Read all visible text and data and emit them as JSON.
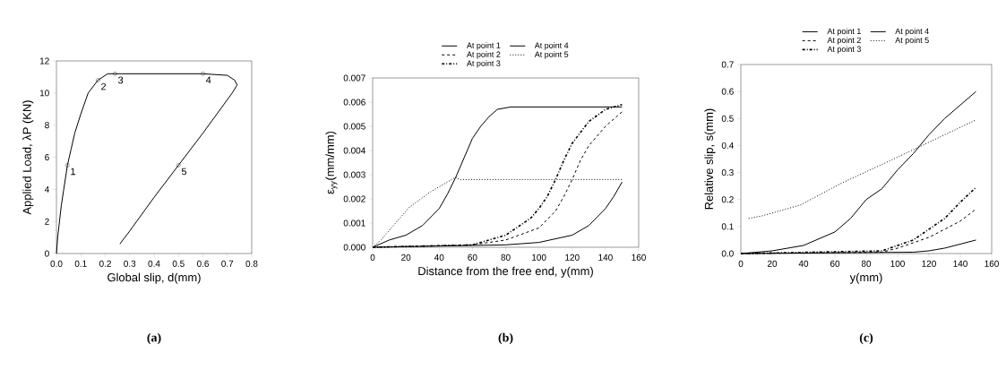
{
  "chart_data": [
    {
      "type": "line",
      "xlabel": "Global slip, d(mm)",
      "ylabel": "Applied Load, λP (KN)",
      "xlim": [
        0,
        0.8
      ],
      "ylim": [
        0,
        12
      ],
      "xticks": [
        {
          "value": 0,
          "label": "0.0"
        },
        0.1,
        0.2,
        0.3,
        0.4,
        0.5,
        0.6,
        0.7,
        0.8
      ],
      "yticks": [
        0,
        2,
        4,
        6,
        8,
        10,
        12
      ],
      "series": [
        {
          "type": "line",
          "color": "#000000",
          "line_style": "solid",
          "marker": "none",
          "x": [
            0,
            0.005,
            0.02,
            0.03,
            0.045,
            0.06,
            0.075,
            0.1,
            0.13,
            0.17,
            0.21,
            0.24,
            0.6,
            0.7,
            0.73,
            0.74,
            0.72,
            0.6,
            0.5,
            0.4,
            0.3,
            0.26
          ],
          "values": [
            0,
            1,
            3,
            4,
            5.5,
            6.5,
            7.5,
            8.7,
            10,
            10.8,
            11.2,
            11.2,
            11.2,
            11.1,
            10.8,
            10.5,
            10,
            7.5,
            5.5,
            3.5,
            1.4,
            0.6
          ]
        },
        {
          "type": "scatter",
          "color": "#000000",
          "marker": "circle",
          "x": [
            0.045,
            0.17,
            0.24,
            0.6,
            0.5
          ],
          "values": [
            5.5,
            10.8,
            11.2,
            11.2,
            5.5
          ]
        }
      ],
      "annotations": [
        {
          "text": "1",
          "x": 0.045,
          "y": 5.5
        },
        {
          "text": "2",
          "x": 0.17,
          "y": 10.8
        },
        {
          "text": "3",
          "x": 0.24,
          "y": 11.2
        },
        {
          "text": "4",
          "x": 0.6,
          "y": 11.2
        },
        {
          "text": "5",
          "x": 0.5,
          "y": 5.5
        },
        "(a)"
      ]
    },
    {
      "type": "line",
      "xlabel": "Distance from the free end, y(mm)",
      "ylabel": "ε$_{yy}$(mm/mm)",
      "xlim": [
        0,
        160
      ],
      "ylim": [
        0,
        0.007
      ],
      "xticks": [
        0,
        20,
        40,
        60,
        80,
        100,
        120,
        140,
        160
      ],
      "yticks": [
        {
          "value": 0,
          "label": "0.000"
        },
        {
          "value": 0.001,
          "label": "0.001"
        },
        {
          "value": 0.002,
          "label": "0.002"
        },
        {
          "value": 0.003,
          "label": "0.003"
        },
        {
          "value": 0.004,
          "label": "0.004"
        },
        {
          "value": 0.005,
          "label": "0.005"
        },
        {
          "value": 0.006,
          "label": "0.006"
        },
        {
          "value": 0.007,
          "label": "0.007"
        }
      ],
      "legend": "top",
      "series": [
        {
          "name": "At point 1",
          "color": "#000000",
          "line_style": "solid",
          "x": [
            0,
            10,
            20,
            30,
            40,
            45,
            50,
            55,
            60,
            65,
            70,
            75,
            83,
            150
          ],
          "values": [
            0,
            0.0003,
            0.0005,
            0.0009,
            0.0016,
            0.0022,
            0.0029,
            0.0037,
            0.0045,
            0.005,
            0.0054,
            0.0057,
            0.0058,
            0.0058
          ]
        },
        {
          "name": "At point 2",
          "color": "#000000",
          "line_style": "dashed",
          "x": [
            0,
            60,
            80,
            100,
            110,
            115,
            120,
            125,
            130,
            140,
            150
          ],
          "values": [
            0,
            0.0001,
            0.0003,
            0.0008,
            0.0015,
            0.0021,
            0.0028,
            0.0036,
            0.0042,
            0.005,
            0.0056
          ]
        },
        {
          "name": "At point 3",
          "color": "#000000",
          "line_style": "dashdot",
          "x": [
            0,
            60,
            80,
            95,
            100,
            105,
            110,
            115,
            120,
            130,
            140,
            150
          ],
          "values": [
            0,
            0.0001,
            0.0005,
            0.0012,
            0.0016,
            0.0021,
            0.0028,
            0.0036,
            0.0043,
            0.0052,
            0.0057,
            0.0059
          ]
        },
        {
          "name": "At point 4",
          "color": "#000000",
          "line_style": "solid",
          "x": [
            0,
            80,
            100,
            120,
            130,
            140,
            145,
            150
          ],
          "values": [
            0,
            0.0001,
            0.0002,
            0.0005,
            0.0009,
            0.0016,
            0.0021,
            0.0027
          ]
        },
        {
          "name": "At point 5",
          "color": "#000000",
          "line_style": "dotted",
          "x": [
            0,
            5,
            22,
            35,
            50,
            52,
            150
          ],
          "values": [
            0,
            0.0003,
            0.00165,
            0.0023,
            0.0029,
            0.0028,
            0.0028
          ]
        }
      ],
      "annotations": [
        "(b)"
      ]
    },
    {
      "type": "line",
      "xlabel": "y(mm)",
      "ylabel": "Relative slip, s(mm)",
      "xlim": [
        0,
        160
      ],
      "ylim": [
        0,
        0.7
      ],
      "xticks": [
        0,
        20,
        40,
        60,
        80,
        100,
        120,
        140,
        160
      ],
      "yticks": [
        {
          "value": 0,
          "label": "0.0"
        },
        0.1,
        0.2,
        0.3,
        0.4,
        0.5,
        0.6,
        0.7
      ],
      "legend": "top",
      "series": [
        {
          "name": "At point 1",
          "color": "#000000",
          "line_style": "solid",
          "x": [
            0,
            20,
            40,
            60,
            70,
            80,
            90,
            100,
            110,
            120,
            130,
            140,
            150
          ],
          "values": [
            0,
            0.01,
            0.03,
            0.08,
            0.13,
            0.2,
            0.24,
            0.31,
            0.37,
            0.44,
            0.5,
            0.55,
            0.6
          ]
        },
        {
          "name": "At point 2",
          "color": "#000000",
          "line_style": "dashed",
          "x": [
            0,
            90,
            100,
            110,
            120,
            130,
            140,
            150
          ],
          "values": [
            0,
            0.005,
            0.02,
            0.04,
            0.06,
            0.09,
            0.12,
            0.165
          ]
        },
        {
          "name": "At point 3",
          "color": "#000000",
          "line_style": "dashdot",
          "x": [
            0,
            90,
            100,
            110,
            120,
            130,
            140,
            150
          ],
          "values": [
            0,
            0.01,
            0.03,
            0.05,
            0.09,
            0.13,
            0.19,
            0.245
          ]
        },
        {
          "name": "At point 4",
          "color": "#000000",
          "line_style": "solid",
          "x": [
            0,
            110,
            120,
            130,
            140,
            150
          ],
          "values": [
            0,
            0.005,
            0.01,
            0.02,
            0.035,
            0.05
          ]
        },
        {
          "name": "At point 5",
          "color": "#000000",
          "line_style": "dotted",
          "x": [
            5,
            14,
            38,
            64,
            90,
            112,
            150
          ],
          "values": [
            0.13,
            0.14,
            0.18,
            0.26,
            0.33,
            0.39,
            0.495
          ]
        }
      ],
      "annotations": [
        "(c)"
      ]
    }
  ]
}
